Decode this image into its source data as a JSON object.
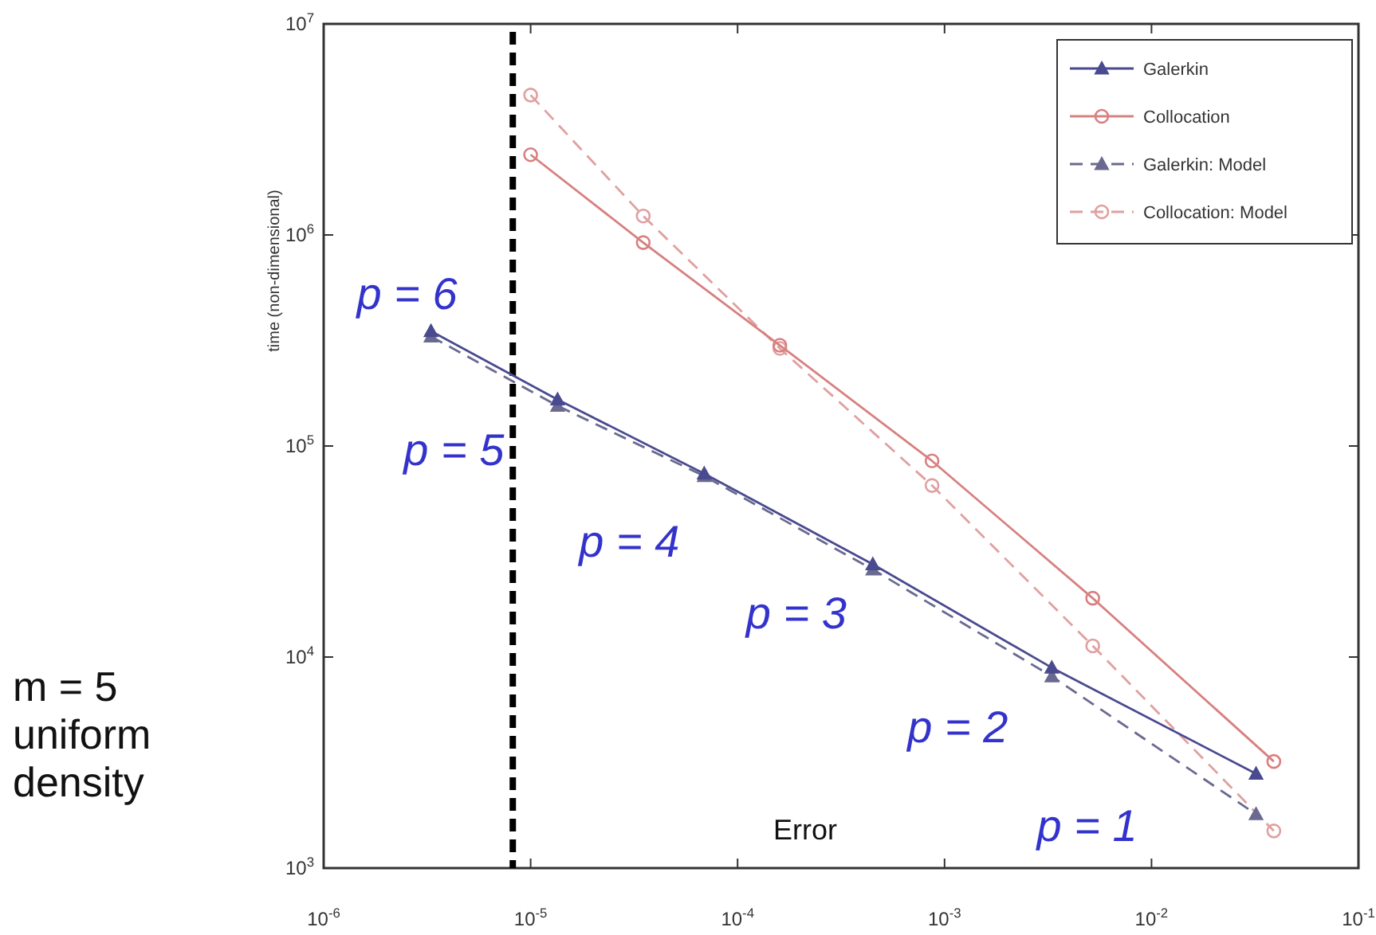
{
  "chart_data": {
    "type": "line",
    "xlabel": "Error",
    "ylabel": "time (non-dimensional)",
    "log": "xy",
    "xlim": [
      1e-06,
      0.1
    ],
    "ylim": [
      1000.0,
      10000000.0
    ],
    "xticks": [
      {
        "value": 1e-06,
        "label": "10$^{-6}$"
      },
      {
        "value": 1e-05,
        "label": "10$^{-5}$"
      },
      {
        "value": 0.0001,
        "label": "10$^{-4}$"
      },
      {
        "value": 0.001,
        "label": "10$^{-3}$"
      },
      {
        "value": 0.01,
        "label": "10$^{-2}$"
      },
      {
        "value": 0.1,
        "label": "10$^{-1}$"
      }
    ],
    "yticks": [
      {
        "value": 1000.0,
        "label": "10$^{3}$"
      },
      {
        "value": 10000.0,
        "label": "10$^{4}$"
      },
      {
        "value": 100000.0,
        "label": "10$^{5}$"
      },
      {
        "value": 1000000.0,
        "label": "10$^{6}$"
      },
      {
        "value": 10000000.0,
        "label": "10$^{7}$"
      }
    ],
    "legend": "top right",
    "grid": false,
    "series": [
      {
        "name": "Galerkin",
        "color": "#4a4a90",
        "marker": "triangle",
        "line_style": "solid",
        "x": [
          3.3e-06,
          1.35e-05,
          6.9e-05,
          0.00045,
          0.0033,
          0.032
        ],
        "values": [
          350000.0,
          166000.0,
          74000.0,
          27500.0,
          8900.0,
          2800.0
        ]
      },
      {
        "name": "Collocation",
        "color": "#d88080",
        "marker": "circle",
        "line_style": "solid",
        "x": [
          1e-05,
          3.5e-05,
          0.00016,
          0.00087,
          0.0052,
          0.039
        ],
        "values": [
          2400000.0,
          920000.0,
          300000.0,
          85000.0,
          19000.0,
          3200.0
        ]
      },
      {
        "name": "Galerkin: Model",
        "color": "#6a6a90",
        "marker": "triangle",
        "line_style": "dashed",
        "x": [
          3.3e-06,
          1.35e-05,
          6.9e-05,
          0.00045,
          0.0033,
          0.032
        ],
        "values": [
          330000.0,
          155000.0,
          72000.0,
          26000.0,
          8100.0,
          1800.0
        ]
      },
      {
        "name": "Collocation: Model",
        "color": "#e0a0a0",
        "marker": "circle",
        "line_style": "dashed",
        "x": [
          1e-05,
          3.5e-05,
          0.00016,
          0.00087,
          0.0052,
          0.039
        ],
        "values": [
          4600000.0,
          1230000.0,
          290000.0,
          65000.0,
          11300.0,
          1500.0
        ]
      }
    ],
    "ref_lines": [
      {
        "axis": "x",
        "value": 8.2e-06,
        "color": "#000000",
        "line_style": "dashed"
      }
    ],
    "annotations": [
      "p = 6",
      "p = 5",
      "p = 4",
      "p = 3",
      "p = 2",
      "p = 1",
      "m = 5\nuniform\ndensity"
    ]
  }
}
